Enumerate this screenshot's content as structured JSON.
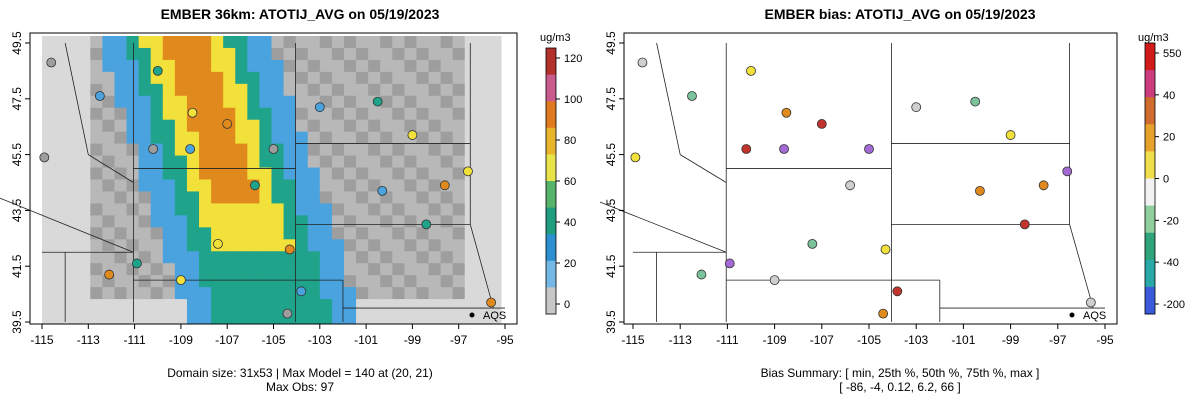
{
  "left": {
    "title": "EMBER 36km: ATOTIJ_AVG on 05/19/2023",
    "legend_unit": "ug/m3",
    "legend_ticks": [
      "120",
      "100",
      "80",
      "60",
      "40",
      "20",
      "0"
    ],
    "xticks": [
      "-115",
      "-113",
      "-111",
      "-109",
      "-107",
      "-105",
      "-103",
      "-101",
      "-99",
      "-97",
      "-95"
    ],
    "yticks": [
      "49.5",
      "47.5",
      "45.5",
      "43.5",
      "41.5",
      "39.5"
    ],
    "station_label": "AQS",
    "footer_line1": "Domain size: 31x53 | Max Model = 140 at (20, 21)",
    "footer_line2": "Max Obs: 97"
  },
  "right": {
    "title": "EMBER bias: ATOTIJ_AVG on 05/19/2023",
    "legend_unit": "ug/m3",
    "legend_ticks": [
      "550",
      "40",
      "20",
      "0",
      "-20",
      "-40",
      "-200"
    ],
    "xticks": [
      "-115",
      "-113",
      "-111",
      "-109",
      "-107",
      "-105",
      "-103",
      "-101",
      "-99",
      "-97",
      "-95"
    ],
    "yticks": [
      "49.5",
      "47.5",
      "45.5",
      "43.5",
      "41.5",
      "39.5"
    ],
    "station_label": "AQS",
    "footer_line1": "Bias Summary: [ min, 25th %, 50th %, 75th %, max ]",
    "footer_line2": "[ -86,   -4,   0.12,   6.2,   66 ]"
  },
  "colors": {
    "smoke_low": "#d9d9d9",
    "smoke_mid": "#9e9e9e",
    "blue": "#4aa3df",
    "teal": "#1fa38a",
    "yellow": "#f2e13a",
    "orange": "#e08a1e",
    "red": "#c0342b"
  }
}
